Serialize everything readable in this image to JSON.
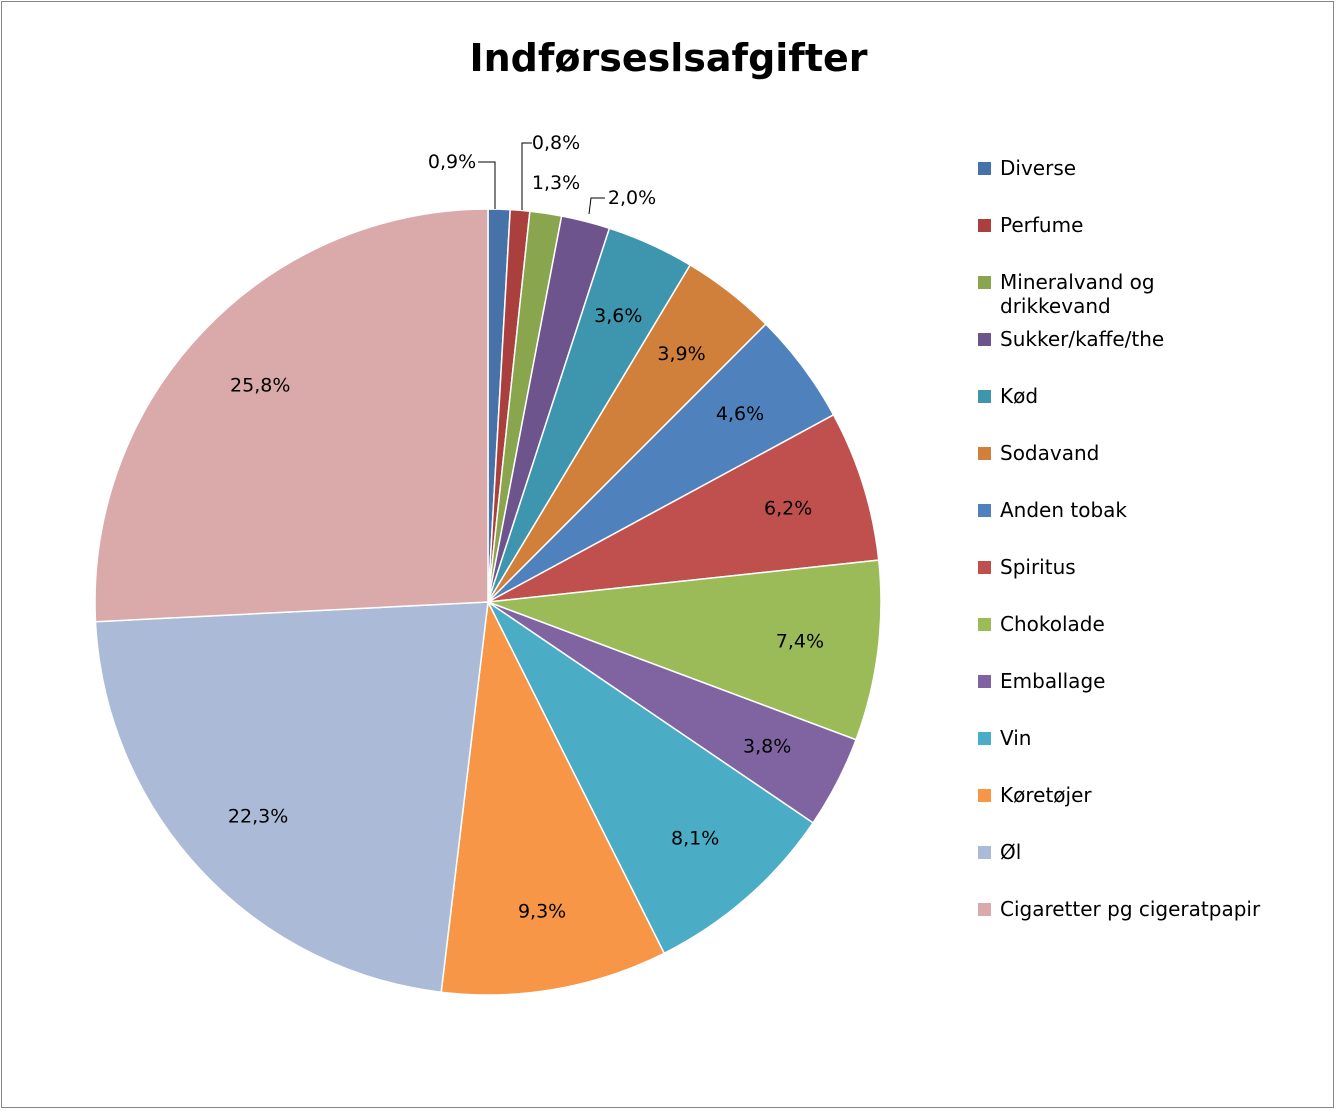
{
  "chart_data": {
    "type": "pie",
    "title": "Indførseslsafgifter",
    "slices": [
      {
        "label": "Diverse",
        "value": 0.9,
        "display": "0,9%",
        "color": "#4672A8"
      },
      {
        "label": "Perfume",
        "value": 0.8,
        "display": "0,8%",
        "color": "#A9403D"
      },
      {
        "label": "Mineralvand og drikkevand",
        "value": 1.3,
        "display": "1,3%",
        "color": "#89A54E"
      },
      {
        "label": "Sukker/kaffe/the",
        "value": 2.0,
        "display": "2,0%",
        "color": "#6E548D"
      },
      {
        "label": "Kød",
        "value": 3.6,
        "display": "3,6%",
        "color": "#3D96AE"
      },
      {
        "label": "Sodavand",
        "value": 3.9,
        "display": "3,9%",
        "color": "#D0803A"
      },
      {
        "label": "Anden tobak",
        "value": 4.6,
        "display": "4,6%",
        "color": "#4F81BD"
      },
      {
        "label": "Spiritus",
        "value": 6.2,
        "display": "6,2%",
        "color": "#C0504D"
      },
      {
        "label": "Chokolade",
        "value": 7.4,
        "display": "7,4%",
        "color": "#9BBB59"
      },
      {
        "label": "Emballage",
        "value": 3.8,
        "display": "3,8%",
        "color": "#8064A2"
      },
      {
        "label": "Vin",
        "value": 8.1,
        "display": "8,1%",
        "color": "#4BACC6"
      },
      {
        "label": "Køretøjer",
        "value": 9.3,
        "display": "9,3%",
        "color": "#F79646"
      },
      {
        "label": "Øl",
        "value": 22.3,
        "display": "22,3%",
        "color": "#AABAD7"
      },
      {
        "label": "Cigaretter pg cigeratpapir",
        "value": 25.8,
        "display": "25,8%",
        "color": "#D9AAA9"
      }
    ],
    "legend_position": "right"
  }
}
